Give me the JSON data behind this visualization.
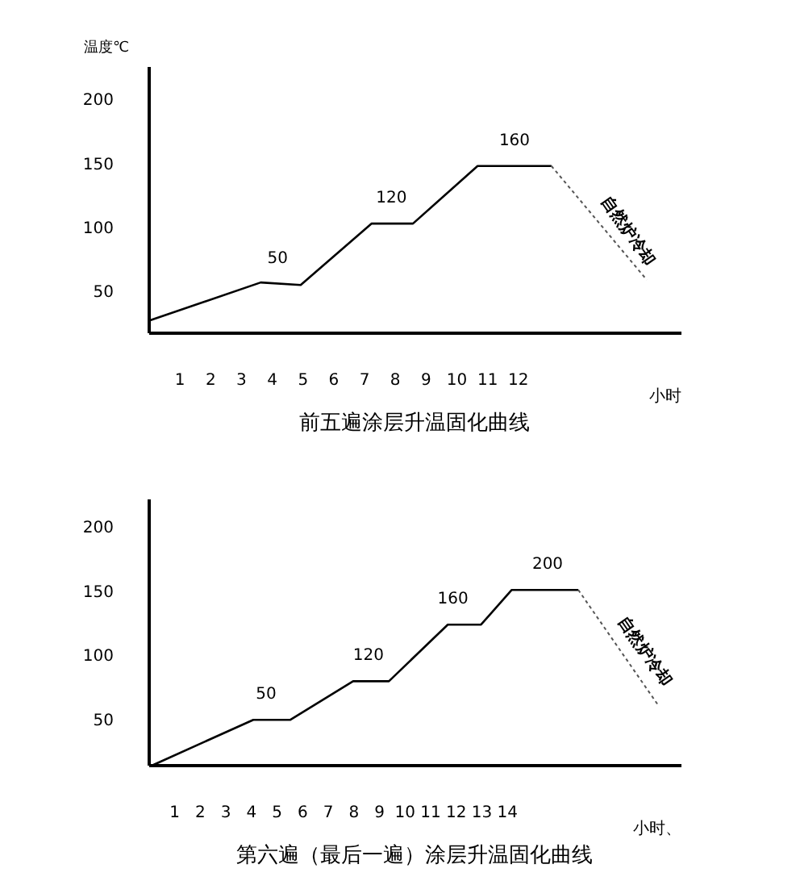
{
  "chart_data": [
    {
      "type": "line",
      "title": "前五遍涂层升温固化曲线",
      "xlabel": "小时",
      "ylabel": "温度℃",
      "x": [
        0,
        3.65,
        4.95,
        7.25,
        8.6,
        10.7,
        13.1
      ],
      "series": [
        {
          "color": "#000000",
          "values": [
            27,
            57,
            55,
            103,
            103,
            148,
            148
          ],
          "line_style": "solid"
        },
        {
          "color": "#555555",
          "x": [
            13.1,
            16.2
          ],
          "values": [
            148,
            59
          ],
          "line_style": "dotted"
        }
      ],
      "annotations": [
        {
          "text": "50",
          "x": 4.2,
          "y": 56
        },
        {
          "text": "120",
          "x": 7.9,
          "y": 103
        },
        {
          "text": "160",
          "x": 11.9,
          "y": 148
        },
        {
          "text": "自然炉冷却",
          "x": 14.6,
          "y": 105
        }
      ],
      "xlim": [
        0,
        17.3
      ],
      "ylim": [
        18,
        226
      ],
      "xticks": [
        1,
        2,
        3,
        4,
        5,
        6,
        7,
        8,
        9,
        10,
        11,
        12
      ],
      "yticks": [
        50,
        100,
        150,
        200
      ]
    },
    {
      "type": "line",
      "title": "第六遍（最后一遍）涂层升温固化曲线",
      "xlabel": "小时、",
      "x": [
        0.2,
        4.1,
        5.55,
        8,
        9.4,
        11.7,
        13,
        14.2,
        16.8
      ],
      "series": [
        {
          "color": "#000000",
          "values": [
            15,
            50,
            50,
            80,
            80,
            124,
            124,
            151,
            151
          ],
          "line_style": "solid"
        },
        {
          "color": "#555555",
          "x": [
            16.8,
            19.9
          ],
          "values": [
            151,
            62
          ],
          "line_style": "dotted"
        }
      ],
      "annotations": [
        {
          "text": "50",
          "x": 4.6,
          "y": 50
        },
        {
          "text": "120",
          "x": 8.6,
          "y": 80
        },
        {
          "text": "160",
          "x": 11.9,
          "y": 124
        },
        {
          "text": "200",
          "x": 15.6,
          "y": 151
        },
        {
          "text": "自然炉冷却",
          "x": 18.2,
          "y": 111
        }
      ],
      "xlim": [
        0,
        20.8
      ],
      "ylim": [
        15,
        222
      ],
      "xticks": [
        1,
        2,
        3,
        4,
        5,
        6,
        7,
        8,
        9,
        10,
        11,
        12,
        13,
        14
      ],
      "yticks": [
        50,
        100,
        150,
        200
      ]
    }
  ]
}
